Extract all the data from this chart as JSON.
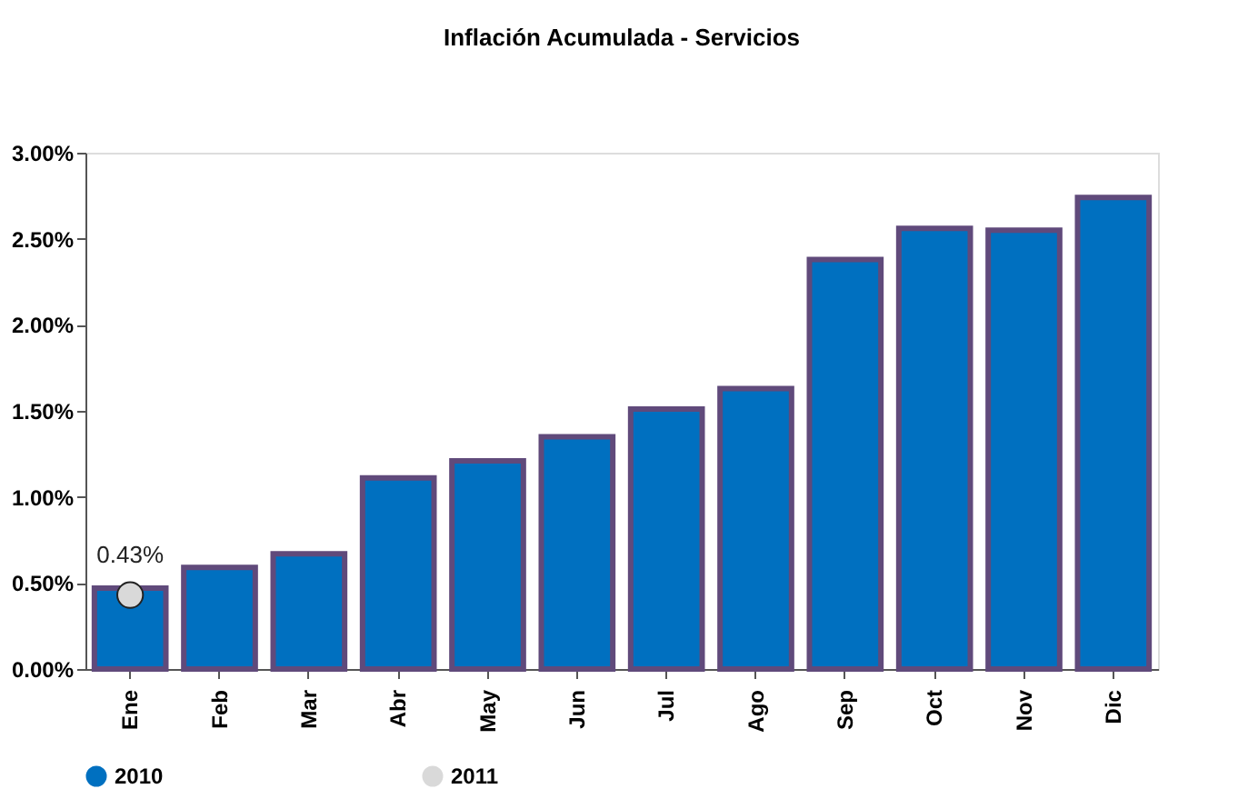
{
  "chart_data": {
    "type": "bar",
    "title": "Inflación Acumulada - Servicios",
    "categories": [
      "Ene",
      "Feb",
      "Mar",
      "Abr",
      "May",
      "Jun",
      "Jul",
      "Ago",
      "Sep",
      "Oct",
      "Nov",
      "Dic"
    ],
    "series": [
      {
        "name": "2010",
        "color": "#0070c0",
        "values": [
          0.47,
          0.59,
          0.67,
          1.11,
          1.21,
          1.35,
          1.51,
          1.63,
          2.38,
          2.56,
          2.55,
          2.74
        ]
      },
      {
        "name": "2011",
        "type": "line",
        "color": "#d9d9d9",
        "marker": "circle",
        "values": [
          0.43,
          null,
          null,
          null,
          null,
          null,
          null,
          null,
          null,
          null,
          null,
          null
        ],
        "value_labels": [
          "0.43%",
          null,
          null,
          null,
          null,
          null,
          null,
          null,
          null,
          null,
          null,
          null
        ]
      }
    ],
    "ylim": [
      0,
      3
    ],
    "yticks": [
      {
        "value": 0,
        "label": "0.00%"
      },
      {
        "value": 0.5,
        "label": "0.50%"
      },
      {
        "value": 1,
        "label": "1.00%"
      },
      {
        "value": 1.5,
        "label": "1.50%"
      },
      {
        "value": 2,
        "label": "2.00%"
      },
      {
        "value": 2.5,
        "label": "2.50%"
      },
      {
        "value": 3,
        "label": "3.00%"
      }
    ],
    "grid": false,
    "legend": "bottom"
  }
}
